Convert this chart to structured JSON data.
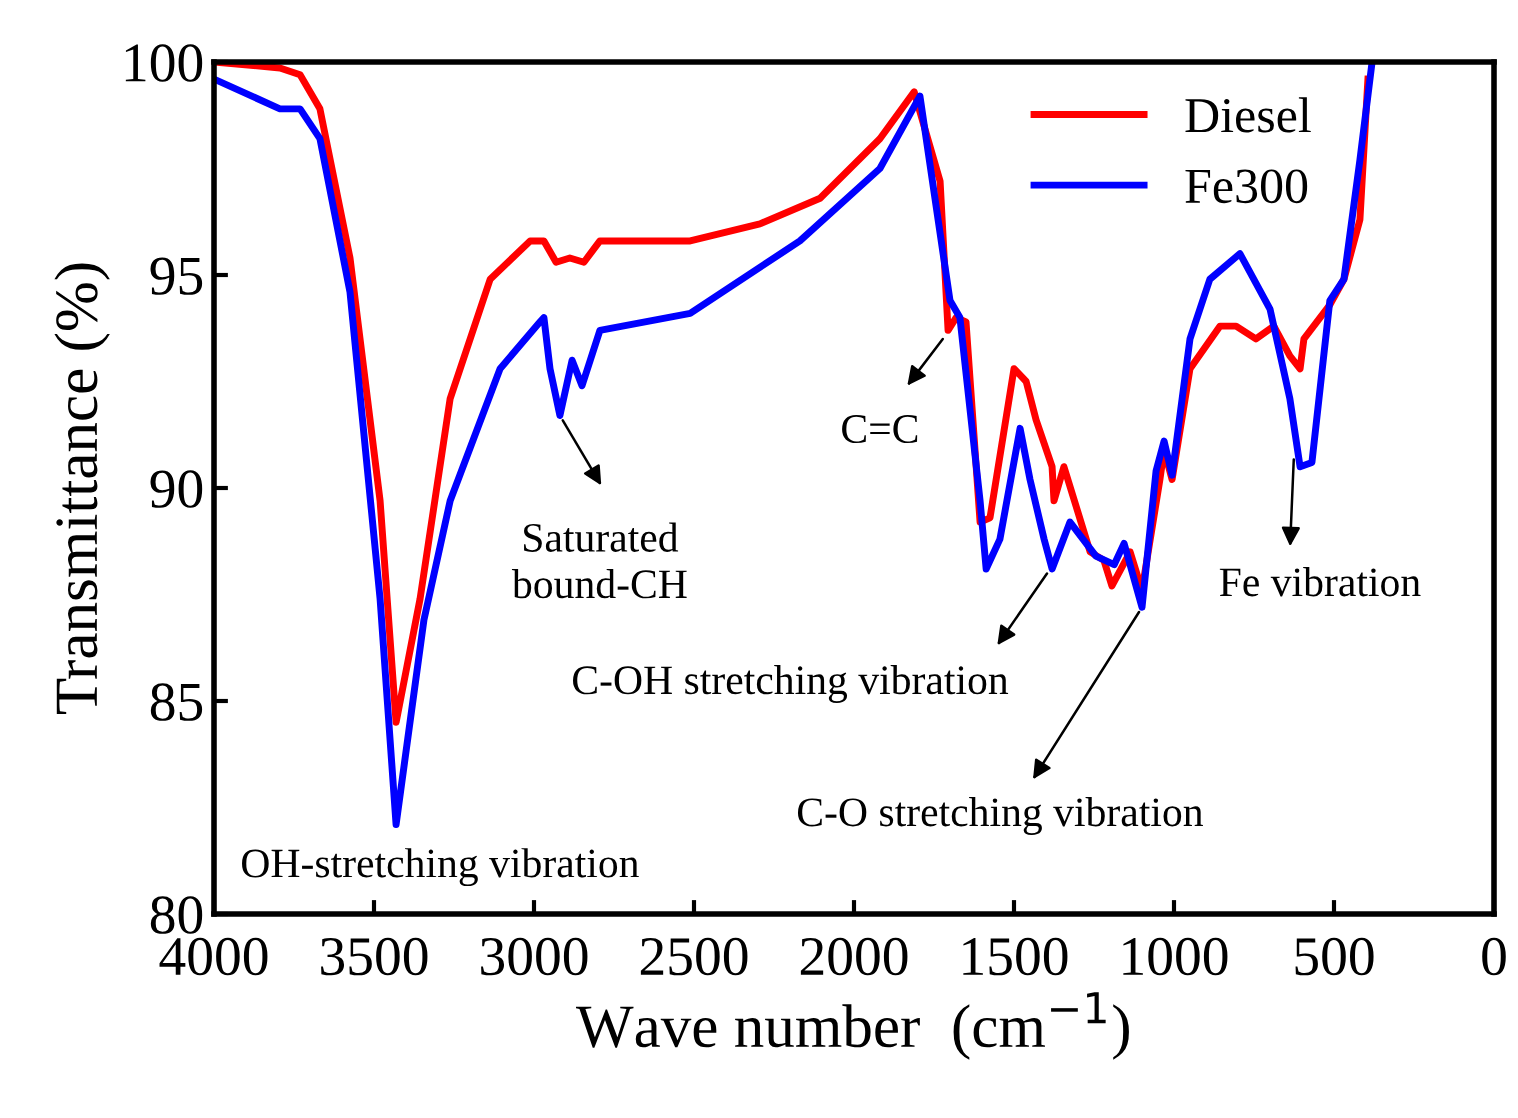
{
  "chart_data": {
    "type": "line",
    "xlabel": "Wave number  (cm$^{−1}$)",
    "ylabel": "Transmittance (%)",
    "xlim": [
      4000,
      0
    ],
    "xticks": [
      4000,
      3500,
      3000,
      2500,
      2000,
      1500,
      1000,
      500,
      0
    ],
    "ylim": [
      80,
      100
    ],
    "yticks": [
      80,
      85,
      90,
      95,
      100
    ],
    "grid": false,
    "legend": "top right",
    "line_style": "solid",
    "marker": "none",
    "series": [
      {
        "name": "Diesel",
        "color": "#ff0000",
        "x": [
          4000,
          3794,
          3731,
          3669,
          3575,
          3481,
          3431,
          3356,
          3262,
          3137,
          3012,
          2969,
          2931,
          2888,
          2844,
          2794,
          2512,
          2294,
          2106,
          1919,
          1812,
          1731,
          1706,
          1681,
          1650,
          1606,
          1575,
          1500,
          1462,
          1431,
          1381,
          1375,
          1344,
          1262,
          1219,
          1194,
          1137,
          1100,
          1044,
          1031,
          1006,
          950,
          856,
          806,
          744,
          688,
          638,
          606,
          594,
          513,
          469,
          419,
          394
        ],
        "values": [
          100,
          99.86,
          99.7,
          98.9,
          95.4,
          89.7,
          84.5,
          87.4,
          92.1,
          94.9,
          95.8,
          95.8,
          95.3,
          95.4,
          95.3,
          95.8,
          95.8,
          96.2,
          96.8,
          98.2,
          99.3,
          97.2,
          93.7,
          94.0,
          93.9,
          89.2,
          89.3,
          92.8,
          92.5,
          91.6,
          90.5,
          89.7,
          90.5,
          88.5,
          88.3,
          87.7,
          88.5,
          87.6,
          90.2,
          90.9,
          90.2,
          92.8,
          93.8,
          93.8,
          93.5,
          93.8,
          93.1,
          92.8,
          93.5,
          94.3,
          94.9,
          96.3,
          99.6
        ]
      },
      {
        "name": "Fe300",
        "color": "#0000ff",
        "x": [
          4000,
          3794,
          3731,
          3669,
          3575,
          3481,
          3431,
          3344,
          3262,
          3106,
          2981,
          2969,
          2950,
          2919,
          2881,
          2850,
          2794,
          2512,
          2169,
          1919,
          1794,
          1700,
          1669,
          1606,
          1587,
          1544,
          1481,
          1450,
          1406,
          1381,
          1325,
          1244,
          1187,
          1156,
          1100,
          1056,
          1031,
          1006,
          950,
          888,
          794,
          700,
          638,
          606,
          569,
          513,
          469,
          419,
          381
        ],
        "values": [
          99.6,
          98.9,
          98.9,
          98.2,
          94.6,
          87.4,
          82.1,
          86.9,
          89.7,
          92.8,
          93.9,
          94.0,
          92.8,
          91.7,
          93.0,
          92.4,
          93.7,
          94.1,
          95.8,
          97.5,
          99.2,
          94.4,
          94.0,
          89.7,
          88.1,
          88.8,
          91.4,
          90.2,
          88.8,
          88.1,
          89.2,
          88.4,
          88.2,
          88.7,
          87.2,
          90.4,
          91.1,
          90.3,
          93.5,
          94.9,
          95.5,
          94.2,
          92.1,
          90.5,
          90.6,
          94.4,
          94.9,
          97.7,
          100
        ]
      }
    ],
    "annotations": [
      "OH-stretching vibration",
      {
        "text": "Saturated\nbound-CH",
        "x": 2919,
        "y": 91.7
      },
      {
        "text": "C=C",
        "x": 1712,
        "y": 93.6
      },
      {
        "text": "C-OH stretching vibration",
        "x": 1387,
        "y": 88.1
      },
      {
        "text": "C-O stretching vibration",
        "x": 1100,
        "y": 87.2
      },
      {
        "text": "Fe vibration",
        "x": 625,
        "y": 90.8
      }
    ]
  }
}
